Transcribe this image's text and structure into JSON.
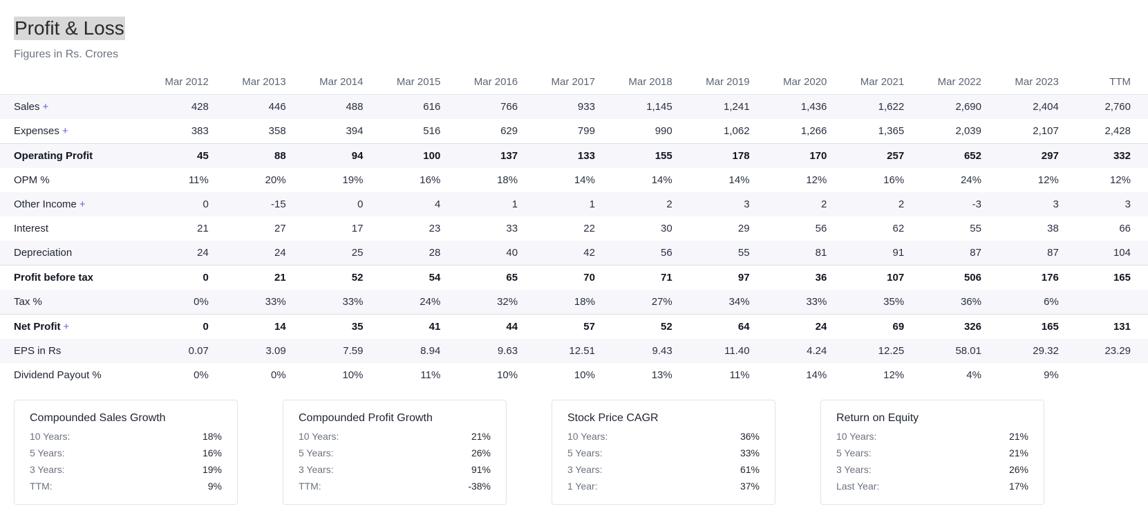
{
  "header": {
    "title": "Profit & Loss",
    "subtitle": "Figures in Rs. Crores"
  },
  "table": {
    "columns": [
      "Mar 2012",
      "Mar 2013",
      "Mar 2014",
      "Mar 2015",
      "Mar 2016",
      "Mar 2017",
      "Mar 2018",
      "Mar 2019",
      "Mar 2020",
      "Mar 2021",
      "Mar 2022",
      "Mar 2023",
      "TTM"
    ],
    "rows": [
      {
        "label": "Sales",
        "expandable": true,
        "style": "stripe",
        "values": [
          "428",
          "446",
          "488",
          "616",
          "766",
          "933",
          "1,145",
          "1,241",
          "1,436",
          "1,622",
          "2,690",
          "2,404",
          "2,760"
        ]
      },
      {
        "label": "Expenses",
        "expandable": true,
        "style": "",
        "values": [
          "383",
          "358",
          "394",
          "516",
          "629",
          "799",
          "990",
          "1,062",
          "1,266",
          "1,365",
          "2,039",
          "2,107",
          "2,428"
        ]
      },
      {
        "label": "Operating Profit",
        "expandable": false,
        "style": "strong stripe",
        "values": [
          "45",
          "88",
          "94",
          "100",
          "137",
          "133",
          "155",
          "178",
          "170",
          "257",
          "652",
          "297",
          "332"
        ]
      },
      {
        "label": "OPM %",
        "expandable": false,
        "style": "",
        "values": [
          "11%",
          "20%",
          "19%",
          "16%",
          "18%",
          "14%",
          "14%",
          "14%",
          "12%",
          "16%",
          "24%",
          "12%",
          "12%"
        ]
      },
      {
        "label": "Other Income",
        "expandable": true,
        "style": "stripe",
        "values": [
          "0",
          "-15",
          "0",
          "4",
          "1",
          "1",
          "2",
          "3",
          "2",
          "2",
          "-3",
          "3",
          "3"
        ]
      },
      {
        "label": "Interest",
        "expandable": false,
        "style": "",
        "values": [
          "21",
          "27",
          "17",
          "23",
          "33",
          "22",
          "30",
          "29",
          "56",
          "62",
          "55",
          "38",
          "66"
        ]
      },
      {
        "label": "Depreciation",
        "expandable": false,
        "style": "stripe",
        "values": [
          "24",
          "24",
          "25",
          "28",
          "40",
          "42",
          "56",
          "55",
          "81",
          "91",
          "87",
          "87",
          "104"
        ]
      },
      {
        "label": "Profit before tax",
        "expandable": false,
        "style": "strong",
        "values": [
          "0",
          "21",
          "52",
          "54",
          "65",
          "70",
          "71",
          "97",
          "36",
          "107",
          "506",
          "176",
          "165"
        ]
      },
      {
        "label": "Tax %",
        "expandable": false,
        "style": "stripe",
        "values": [
          "0%",
          "33%",
          "33%",
          "24%",
          "32%",
          "18%",
          "27%",
          "34%",
          "33%",
          "35%",
          "36%",
          "6%",
          ""
        ]
      },
      {
        "label": "Net Profit",
        "expandable": true,
        "style": "strong",
        "values": [
          "0",
          "14",
          "35",
          "41",
          "44",
          "57",
          "52",
          "64",
          "24",
          "69",
          "326",
          "165",
          "131"
        ]
      },
      {
        "label": "EPS in Rs",
        "expandable": false,
        "style": "stripe",
        "values": [
          "0.07",
          "3.09",
          "7.59",
          "8.94",
          "9.63",
          "12.51",
          "9.43",
          "11.40",
          "4.24",
          "12.25",
          "58.01",
          "29.32",
          "23.29"
        ]
      },
      {
        "label": "Dividend Payout %",
        "expandable": false,
        "style": "",
        "values": [
          "0%",
          "0%",
          "10%",
          "11%",
          "10%",
          "10%",
          "13%",
          "11%",
          "14%",
          "12%",
          "4%",
          "9%",
          ""
        ]
      }
    ]
  },
  "cards": [
    {
      "title": "Compounded Sales Growth",
      "rows": [
        {
          "k": "10 Years:",
          "v": "18%"
        },
        {
          "k": "5 Years:",
          "v": "16%"
        },
        {
          "k": "3 Years:",
          "v": "19%"
        },
        {
          "k": "TTM:",
          "v": "9%"
        }
      ]
    },
    {
      "title": "Compounded Profit Growth",
      "rows": [
        {
          "k": "10 Years:",
          "v": "21%"
        },
        {
          "k": "5 Years:",
          "v": "26%"
        },
        {
          "k": "3 Years:",
          "v": "91%"
        },
        {
          "k": "TTM:",
          "v": "-38%"
        }
      ]
    },
    {
      "title": "Stock Price CAGR",
      "rows": [
        {
          "k": "10 Years:",
          "v": "36%"
        },
        {
          "k": "5 Years:",
          "v": "33%"
        },
        {
          "k": "3 Years:",
          "v": "61%"
        },
        {
          "k": "1 Year:",
          "v": "37%"
        }
      ]
    },
    {
      "title": "Return on Equity",
      "rows": [
        {
          "k": "10 Years:",
          "v": "21%"
        },
        {
          "k": "5 Years:",
          "v": "21%"
        },
        {
          "k": "3 Years:",
          "v": "26%"
        },
        {
          "k": "Last Year:",
          "v": "17%"
        }
      ]
    }
  ]
}
